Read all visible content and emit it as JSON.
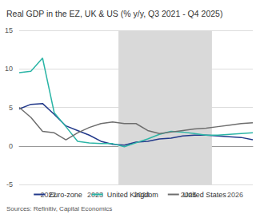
{
  "chart_data": {
    "type": "line",
    "title": "Real GDP in the EZ, UK & US (% y/y, Q3 2021 - Q4 2025)",
    "source": "Sources: Refinitiv, Capital Economics",
    "x": [
      2021.75,
      2022.0,
      2022.25,
      2022.5,
      2022.75,
      2023.0,
      2023.25,
      2023.5,
      2023.75,
      2024.0,
      2024.25,
      2024.5,
      2024.75,
      2025.0,
      2025.25,
      2025.5,
      2025.75,
      2026.0,
      2026.25,
      2026.5,
      2026.75
    ],
    "series": [
      {
        "name": "Euro-zone",
        "color": "#22398a",
        "values": [
          4.8,
          5.4,
          5.5,
          4.1,
          2.6,
          2.0,
          1.4,
          0.6,
          0.2,
          0.1,
          0.5,
          0.6,
          0.9,
          1.0,
          1.3,
          1.4,
          1.4,
          1.3,
          1.2,
          1.1,
          0.8
        ]
      },
      {
        "name": "United Kingdom",
        "color": "#2bb5a6",
        "values": [
          9.5,
          9.7,
          11.4,
          4.3,
          2.5,
          0.6,
          0.4,
          0.3,
          0.3,
          -0.1,
          0.4,
          0.9,
          1.5,
          1.9,
          1.8,
          1.6,
          1.4,
          1.4,
          1.5,
          1.6,
          1.7
        ]
      },
      {
        "name": "United States",
        "color": "#6e6e6e",
        "values": [
          5.0,
          3.7,
          1.9,
          1.7,
          0.8,
          1.7,
          2.4,
          2.9,
          3.1,
          2.9,
          2.9,
          2.0,
          1.6,
          1.8,
          2.0,
          2.2,
          2.3,
          2.5,
          2.7,
          2.9,
          3.0
        ]
      }
    ],
    "shaded": [
      2023.875,
      2025.875
    ],
    "xlim": [
      2021.75,
      2026.75
    ],
    "xticks": [
      {
        "value": 2022.375,
        "label": "2022"
      },
      {
        "value": 2023.375,
        "label": "2023"
      },
      {
        "value": 2024.375,
        "label": "2024"
      },
      {
        "value": 2025.375,
        "label": "2025"
      },
      {
        "value": 2026.375,
        "label": "2026"
      }
    ],
    "ylim": [
      -5,
      15
    ],
    "yticks": [
      -5,
      0,
      5,
      10,
      15
    ],
    "grid": true,
    "legend": "bottom"
  }
}
